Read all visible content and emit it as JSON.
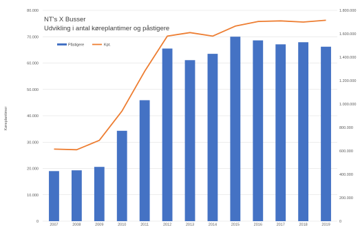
{
  "chart_data": {
    "type": "bar+line",
    "title": "NT's X Busser",
    "subtitle": "Udvikling i antal køreplantimer og påstigere",
    "ylabel": "Køreplantimer",
    "categories": [
      "2007",
      "2008",
      "2009",
      "2010",
      "2011",
      "2012",
      "2013",
      "2014",
      "2015",
      "2016",
      "2017",
      "2018",
      "2019"
    ],
    "y_left_ticks": [
      "0",
      "10.000",
      "20.000",
      "30.000",
      "40.000",
      "50.000",
      "60.000",
      "70.000",
      "80.000"
    ],
    "y_right_ticks": [
      "0",
      "200.000",
      "400.000",
      "600.000",
      "800.000",
      "1.000.000",
      "1.200.000",
      "1.400.000",
      "1.600.000",
      "1.800.000"
    ],
    "ylim_left": [
      0,
      80000
    ],
    "ylim_right": [
      0,
      1800000
    ],
    "legend_position": "top-left",
    "series": [
      {
        "name": "Påstigere",
        "type": "bar",
        "axis": "left",
        "color": "#4472C4",
        "values": [
          19000,
          19300,
          20600,
          34300,
          45900,
          65500,
          61100,
          63500,
          70000,
          68600,
          67100,
          67900,
          66200
        ]
      },
      {
        "name": "Kpt.",
        "type": "line",
        "axis": "right",
        "color": "#ED7D31",
        "values": [
          615000,
          610000,
          690000,
          940000,
          1280000,
          1580000,
          1610000,
          1580000,
          1665000,
          1705000,
          1710000,
          1700000,
          1715000
        ]
      }
    ]
  }
}
